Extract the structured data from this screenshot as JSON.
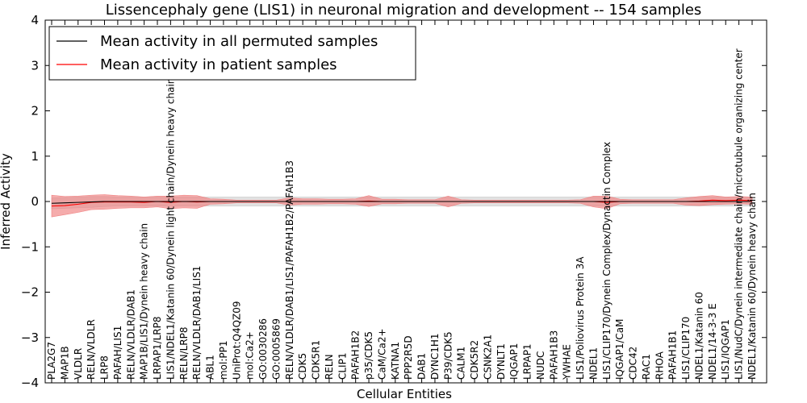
{
  "chart_data": {
    "type": "line",
    "title": "Lissencephaly gene (LIS1) in neuronal migration and development -- 154 samples",
    "xlabel": "Cellular Entities",
    "ylabel": "Inferred Activity",
    "ylim": [
      -4,
      4
    ],
    "yticks": [
      -4,
      -3,
      -2,
      -1,
      0,
      1,
      2,
      3,
      4
    ],
    "ytick_labels": [
      "−4",
      "−3",
      "−2",
      "−1",
      "0",
      "1",
      "2",
      "3",
      "4"
    ],
    "grid": false,
    "legend": {
      "position": "top-left",
      "entries": [
        {
          "label": "Mean activity in all permuted samples",
          "color": "#000000"
        },
        {
          "label": "Mean activity in patient samples",
          "color": "#ff0000"
        }
      ]
    },
    "categories": [
      "PLA2G7",
      "MAP1B",
      "VLDLR",
      "RELN/VLDLR",
      "LRP8",
      "PAFAH/LIS1",
      "RELN/VLDLR/DAB1",
      "MAP1B/LIS1/Dynein heavy chain",
      "LRPAP1/LRP8",
      "LIS1/NDEL1/Katanin 60/Dynein light chain/Dynein heavy chain",
      "RELN/LRP8",
      "RELN/VLDLR/DAB1/LIS1",
      "ABL1",
      "mol:PP1",
      "UniProt:Q4QZ09",
      "mol:Ca2+",
      "GO:0030286",
      "GO:0005869",
      "RELN/VLDLR/DAB1/LIS1/PAFAH1B2/PAFAH1B3",
      "CDK5",
      "CDK5R1",
      "RELN",
      "CLIP1",
      "PAFAH1B2",
      "p35/CDK5",
      "CaM/Ca2+",
      "KATNA1",
      "PPP2R5D",
      "DAB1",
      "DYNC1H1",
      "P39/CDK5",
      "CALM1",
      "CDK5R2",
      "CSNK2A1",
      "DYNLT1",
      "IQGAP1",
      "LRPAP1",
      "NUDC",
      "PAFAH1B3",
      "YWHAE",
      "LIS1/Poliovirus Protein 3A",
      "NDEL1",
      "LIS1/CLIP170/Dynein Complex/Dynactin Complex",
      "IQGAP1/CaM",
      "CDC42",
      "RAC1",
      "RHOA",
      "PAFAH1B1",
      "LIS1/CLIP170",
      "NDEL1/Katanin 60",
      "NDEL1/14-3-3 E",
      "LIS1/IQGAP1",
      "LIS1/NudC/Dynein intermediate chain/microtubule organizing center",
      "NDEL1/Katanin 60/Dynein heavy chain"
    ],
    "series": [
      {
        "name": "Mean activity in all permuted samples",
        "color": "#000000",
        "values": [
          -0.04,
          -0.03,
          -0.02,
          -0.01,
          0.0,
          0.0,
          0.0,
          0.0,
          0.0,
          0.0,
          0.0,
          0.0,
          0.0,
          0.0,
          0.0,
          0.0,
          0.0,
          0.0,
          0.0,
          0.0,
          0.0,
          0.0,
          0.0,
          0.0,
          0.0,
          0.0,
          0.0,
          0.0,
          0.0,
          0.0,
          0.0,
          0.0,
          0.0,
          0.0,
          0.0,
          0.0,
          0.0,
          0.0,
          0.0,
          0.0,
          0.0,
          0.0,
          0.0,
          0.0,
          0.0,
          0.0,
          0.0,
          0.0,
          0.0,
          0.0,
          0.0,
          0.0,
          0.0,
          0.0
        ],
        "band": [
          0.12,
          0.12,
          0.12,
          0.12,
          0.11,
          0.1,
          0.1,
          0.1,
          0.1,
          0.1,
          0.1,
          0.1,
          0.1,
          0.1,
          0.1,
          0.1,
          0.1,
          0.1,
          0.1,
          0.1,
          0.1,
          0.1,
          0.1,
          0.1,
          0.1,
          0.1,
          0.1,
          0.1,
          0.1,
          0.1,
          0.1,
          0.1,
          0.1,
          0.1,
          0.1,
          0.1,
          0.1,
          0.1,
          0.1,
          0.1,
          0.1,
          0.1,
          0.1,
          0.1,
          0.1,
          0.1,
          0.1,
          0.1,
          0.1,
          0.1,
          0.1,
          0.1,
          0.1,
          0.1
        ],
        "band_color": "#c8c8c8"
      },
      {
        "name": "Mean activity in patient samples",
        "color": "#ff0000",
        "values": [
          -0.1,
          -0.09,
          -0.06,
          -0.02,
          -0.01,
          -0.01,
          -0.01,
          -0.02,
          0.0,
          -0.02,
          0.0,
          -0.01,
          0.0,
          0.0,
          0.0,
          0.0,
          0.0,
          0.0,
          0.0,
          0.0,
          0.0,
          0.0,
          0.0,
          0.0,
          0.01,
          0.0,
          0.0,
          0.0,
          0.0,
          0.0,
          0.0,
          0.0,
          0.0,
          0.0,
          0.0,
          0.0,
          0.0,
          0.0,
          0.0,
          0.0,
          0.0,
          0.0,
          -0.02,
          0.0,
          0.0,
          0.0,
          0.0,
          0.0,
          0.0,
          0.01,
          0.03,
          0.02,
          0.03,
          0.02
        ],
        "band": [
          0.24,
          0.2,
          0.18,
          0.16,
          0.16,
          0.14,
          0.13,
          0.12,
          0.12,
          0.14,
          0.14,
          0.14,
          0.06,
          0.05,
          0.03,
          0.03,
          0.03,
          0.03,
          0.08,
          0.06,
          0.06,
          0.05,
          0.05,
          0.06,
          0.12,
          0.05,
          0.05,
          0.04,
          0.04,
          0.04,
          0.12,
          0.04,
          0.03,
          0.03,
          0.03,
          0.03,
          0.03,
          0.03,
          0.03,
          0.03,
          0.04,
          0.12,
          0.14,
          0.05,
          0.04,
          0.04,
          0.04,
          0.04,
          0.08,
          0.1,
          0.1,
          0.08,
          0.08,
          0.08
        ],
        "band_color": "#f08080"
      }
    ]
  }
}
